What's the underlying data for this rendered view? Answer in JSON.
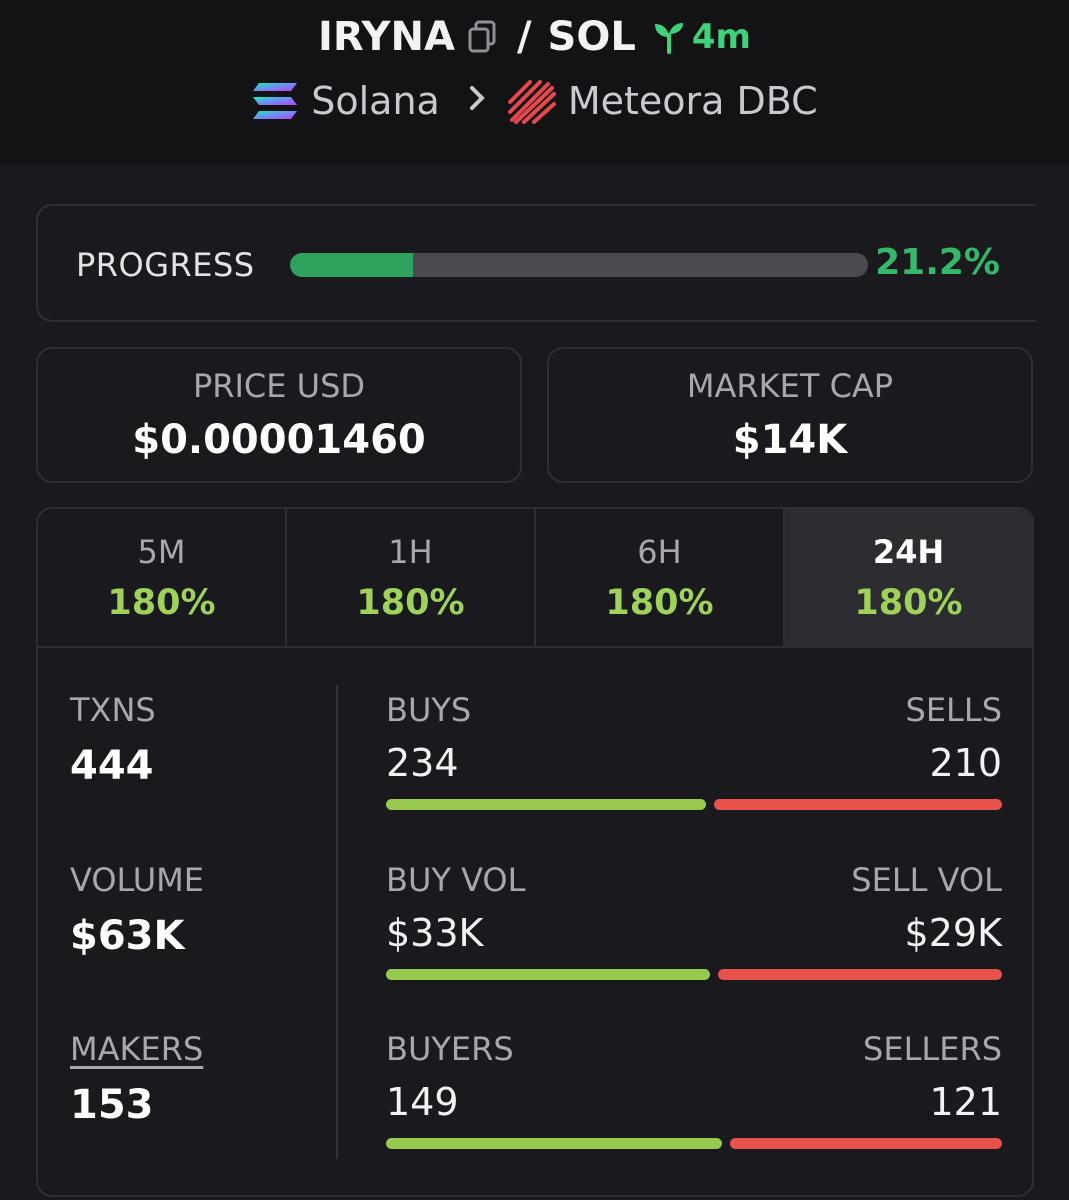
{
  "header": {
    "token": "IRYNA",
    "separator": "/",
    "quote": "SOL",
    "age": "4m",
    "chain": "Solana",
    "dex": "Meteora DBC",
    "copy_icon": "copy-icon",
    "age_icon": "sprout-icon",
    "chain_icon": "solana-logo-icon",
    "dex_icon": "meteora-logo-icon",
    "chevron_icon": "chevron-right-icon"
  },
  "progress": {
    "label": "PROGRESS",
    "value_text": "21.2%",
    "fraction": 0.212
  },
  "price": {
    "label": "PRICE USD",
    "value": "$0.00001460"
  },
  "market_cap": {
    "label": "MARKET CAP",
    "value": "$14K"
  },
  "tabs": [
    {
      "label": "5M",
      "change": "180%"
    },
    {
      "label": "1H",
      "change": "180%"
    },
    {
      "label": "6H",
      "change": "180%"
    },
    {
      "label": "24H",
      "change": "180%",
      "active": true
    }
  ],
  "stats": {
    "txns": {
      "label": "TXNS",
      "value": "444"
    },
    "volume": {
      "label": "VOLUME",
      "value": "$63K"
    },
    "makers": {
      "label": "MAKERS",
      "value": "153"
    }
  },
  "splits": {
    "buys": {
      "left_label": "BUYS",
      "right_label": "SELLS",
      "left_value": "234",
      "right_value": "210",
      "buy_count": 234,
      "sell_count": 210
    },
    "vol": {
      "left_label": "BUY VOL",
      "right_label": "SELL VOL",
      "left_value": "$33K",
      "right_value": "$29K",
      "buy_count": 33,
      "sell_count": 29
    },
    "buyers": {
      "left_label": "BUYERS",
      "right_label": "SELLERS",
      "left_value": "149",
      "right_value": "121",
      "buy_count": 149,
      "sell_count": 121
    }
  },
  "colors": {
    "positive": "#9ed25a",
    "progress_fill": "#2fa35e",
    "buy_bar": "#97c94e",
    "sell_bar": "#e8524d",
    "age": "#3fd27a"
  }
}
